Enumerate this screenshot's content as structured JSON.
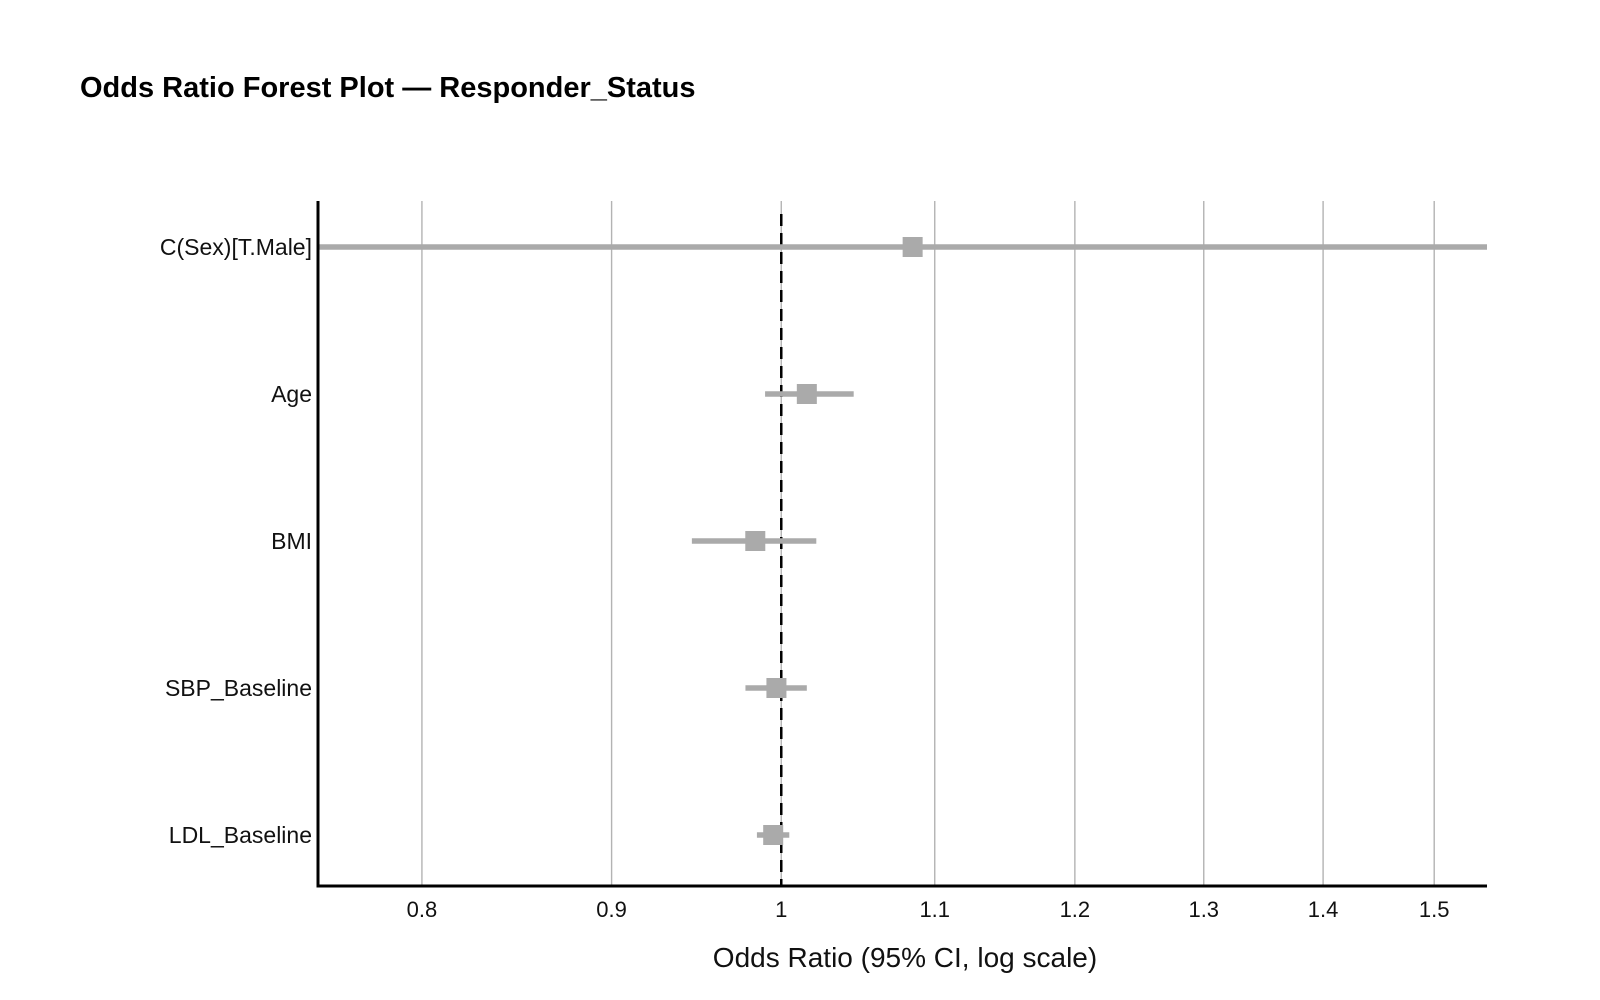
{
  "chart_data": {
    "type": "forest",
    "title": "Odds Ratio Forest Plot — Responder_Status",
    "xlabel": "Odds Ratio (95% CI, log scale)",
    "ylabel": "",
    "x_scale": "log",
    "xlim": [
      0.75,
      1.55
    ],
    "xticks": [
      0.8,
      0.9,
      1,
      1.1,
      1.2,
      1.3,
      1.4,
      1.5
    ],
    "xtick_labels": [
      "0.8",
      "0.9",
      "1",
      "1.1",
      "1.2",
      "1.3",
      "1.4",
      "1.5"
    ],
    "reference_line": 1,
    "grid": "vertical",
    "marker_color": "#aaaaaa",
    "reference_color": "#000000",
    "categories": [
      "C(Sex)[T.Male]",
      "Age",
      "BMI",
      "SBP_Baseline",
      "LDL_Baseline"
    ],
    "odds_ratio": [
      1.085,
      1.016,
      0.984,
      0.997,
      0.995
    ],
    "ci_lower": [
      0.75,
      0.99,
      0.946,
      0.978,
      0.985
    ],
    "ci_upper": [
      1.55,
      1.046,
      1.022,
      1.016,
      1.005
    ]
  }
}
